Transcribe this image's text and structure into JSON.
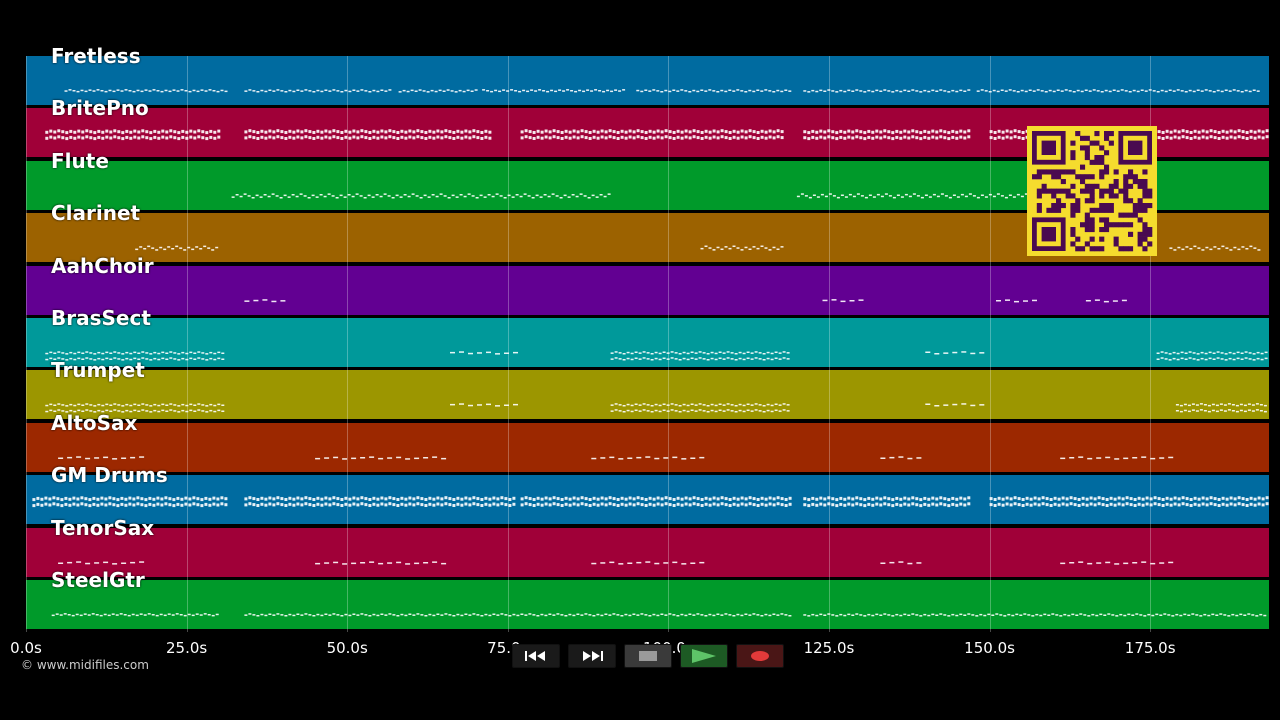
{
  "tracks": [
    {
      "name": "Fretless",
      "color": "#006ba0"
    },
    {
      "name": "BritePno",
      "color": "#a00038"
    },
    {
      "name": "Flute",
      "color": "#009a2a"
    },
    {
      "name": "Clarinet",
      "color": "#9c6200"
    },
    {
      "name": "AahChoir",
      "color": "#620092"
    },
    {
      "name": "BrasSect",
      "color": "#00999a"
    },
    {
      "name": "Trumpet",
      "color": "#9c9600"
    },
    {
      "name": "AltoSax",
      "color": "#9c2800"
    },
    {
      "name": "GM Drums",
      "color": "#006ba0"
    },
    {
      "name": "TenorSax",
      "color": "#a00038"
    },
    {
      "name": "SteelGtr",
      "color": "#009a2a"
    }
  ],
  "timeline": {
    "ticks": [
      "0.0s",
      "25.0s",
      "50.0s",
      "75.0s",
      "100.0s",
      "125.0s",
      "150.0s",
      "175.0s"
    ],
    "tick_seconds": [
      0,
      25,
      50,
      75,
      100,
      125,
      150,
      175
    ],
    "duration_seconds": 193.5
  },
  "copyright": "© www.midifiles.com",
  "transport": {
    "buttons": [
      {
        "name": "rewind-button",
        "icon": "rewind-icon",
        "bg": "#1a1a1a"
      },
      {
        "name": "fast-forward-button",
        "icon": "fast-forward-icon",
        "bg": "#1a1a1a"
      },
      {
        "name": "stop-button",
        "icon": "stop-icon",
        "bg": "#3a3a3a"
      },
      {
        "name": "play-button",
        "icon": "play-icon",
        "bg": "#1d5a24"
      },
      {
        "name": "record-button",
        "icon": "record-icon",
        "bg": "#4a1616"
      }
    ]
  }
}
